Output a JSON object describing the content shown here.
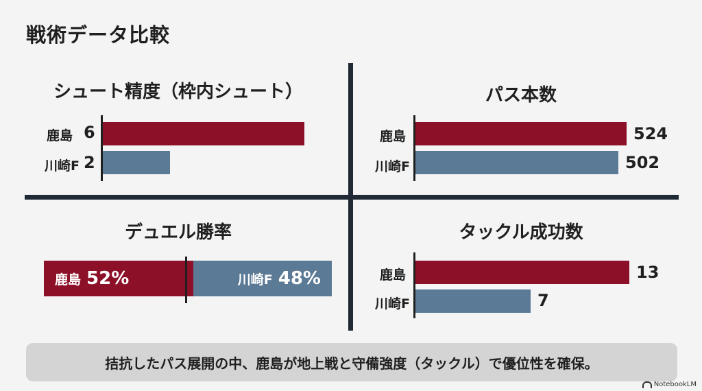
{
  "page": {
    "title": "戦術データ比較"
  },
  "chart_data": [
    {
      "type": "bar",
      "title": "シュート精度（枠内シュート）",
      "categories": [
        "鹿島",
        "川崎F"
      ],
      "values": [
        6,
        2
      ],
      "value_labels": [
        "6",
        "2"
      ],
      "colors": [
        "#8c1028",
        "#5b7a95"
      ]
    },
    {
      "type": "bar",
      "title": "パス本数",
      "categories": [
        "鹿島",
        "川崎F"
      ],
      "values": [
        524,
        502
      ],
      "value_labels": [
        "524",
        "502"
      ],
      "colors": [
        "#8c1028",
        "#5b7a95"
      ]
    },
    {
      "type": "bar",
      "title": "デュエル勝率",
      "stacked": true,
      "categories": [
        "鹿島",
        "川崎F"
      ],
      "values": [
        52,
        48
      ],
      "value_labels": [
        "52%",
        "48%"
      ],
      "colors": [
        "#8c1028",
        "#5b7a95"
      ]
    },
    {
      "type": "bar",
      "title": "タックル成功数",
      "categories": [
        "鹿島",
        "川崎F"
      ],
      "values": [
        13,
        7
      ],
      "value_labels": [
        "13",
        "7"
      ],
      "colors": [
        "#8c1028",
        "#5b7a95"
      ]
    }
  ],
  "summary": {
    "text": "拮抗したパス展開の中、鹿島が地上戦と守備強度（タックル）で優位性を確保。"
  },
  "watermark": {
    "text": "NotebookLM",
    "icon": "notebooklm-icon"
  }
}
